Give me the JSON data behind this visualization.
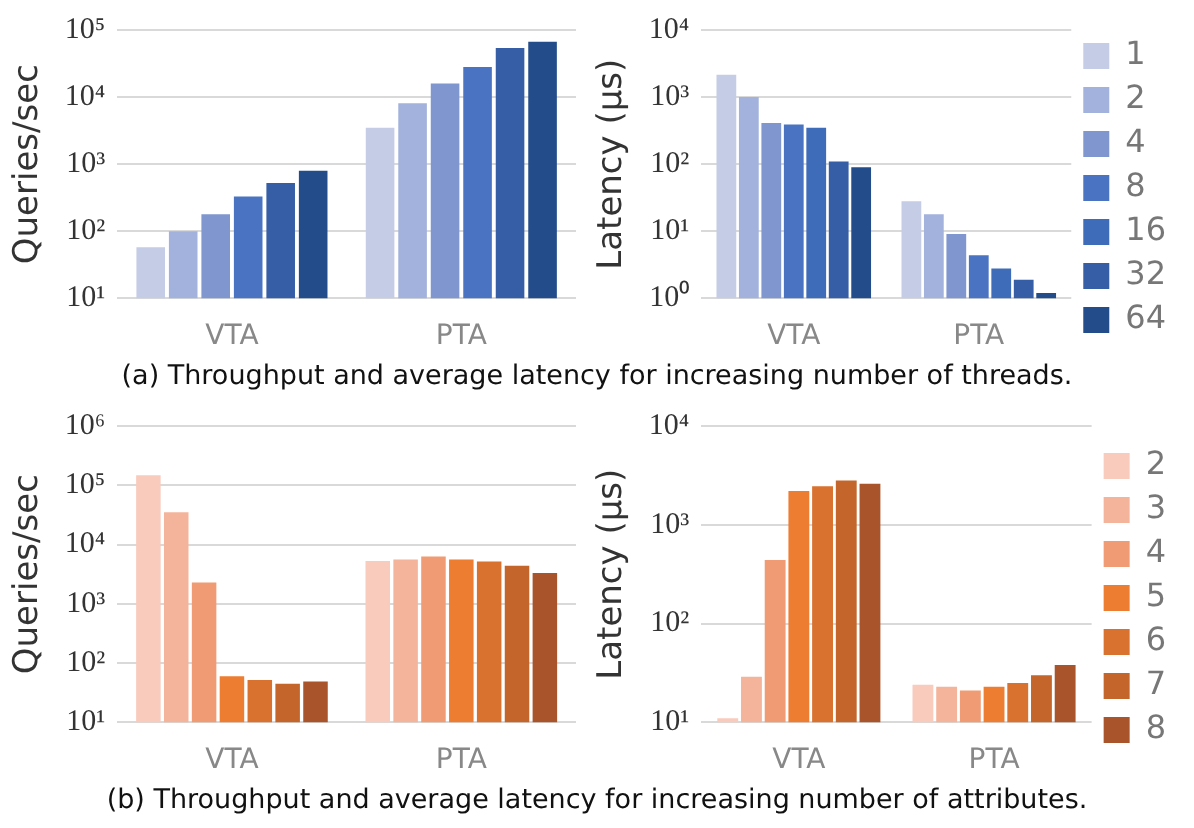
{
  "chart_data": [
    {
      "type": "bar",
      "ylabel": "Queries/sec",
      "categories": [
        "VTA",
        "PTA"
      ],
      "log": "y",
      "grid": "y",
      "legend": false,
      "ylim": [
        10,
        100000
      ],
      "yticks": [
        {
          "value": 10,
          "label": "10¹"
        },
        {
          "value": 100,
          "label": "10²"
        },
        {
          "value": 1000,
          "label": "10³"
        },
        {
          "value": 10000,
          "label": "10⁴"
        },
        {
          "value": 100000,
          "label": "10⁵"
        }
      ],
      "annotations": [
        "(a) Throughput and average latency for increasing number of threads."
      ],
      "series": [
        {
          "color": "#c5cde6",
          "values": [
            58,
            3500
          ]
        },
        {
          "color": "#a3b2dc",
          "values": [
            100,
            8100
          ]
        },
        {
          "color": "#7f96cf",
          "values": [
            180,
            16000
          ]
        },
        {
          "color": "#4a74c2",
          "values": [
            330,
            28000
          ]
        },
        {
          "color": "#365ea6",
          "values": [
            525,
            54000
          ]
        },
        {
          "color": "#234c8a",
          "values": [
            800,
            67000
          ]
        }
      ]
    },
    {
      "type": "bar",
      "ylabel": "Latency (µs)",
      "categories": [
        "VTA",
        "PTA"
      ],
      "log": "y",
      "grid": "y",
      "legend": "right",
      "ylim": [
        1,
        10000
      ],
      "yticks": [
        {
          "value": 1,
          "label": "10⁰"
        },
        {
          "value": 10,
          "label": "10¹"
        },
        {
          "value": 100,
          "label": "10²"
        },
        {
          "value": 1000,
          "label": "10³"
        },
        {
          "value": 10000,
          "label": "10⁴"
        }
      ],
      "series": [
        {
          "name": "1",
          "color": "#c5cde6",
          "values": [
            2150,
            28
          ]
        },
        {
          "name": "2",
          "color": "#a3b2dc",
          "values": [
            1000,
            18
          ]
        },
        {
          "name": "4",
          "color": "#7f96cf",
          "values": [
            410,
            9.1
          ]
        },
        {
          "name": "8",
          "color": "#4a74c2",
          "values": [
            390,
            4.4
          ]
        },
        {
          "name": "16",
          "color": "#3f6cb9",
          "values": [
            350,
            2.8
          ]
        },
        {
          "name": "32",
          "color": "#365ea6",
          "values": [
            110,
            1.9
          ]
        },
        {
          "name": "64",
          "color": "#234c8a",
          "values": [
            90,
            1.2
          ]
        }
      ]
    },
    {
      "type": "bar",
      "ylabel": "Queries/sec",
      "categories": [
        "VTA",
        "PTA"
      ],
      "log": "y",
      "grid": "y",
      "legend": false,
      "ylim": [
        10,
        1000000
      ],
      "yticks": [
        {
          "value": 10,
          "label": "10¹"
        },
        {
          "value": 100,
          "label": "10²"
        },
        {
          "value": 1000,
          "label": "10³"
        },
        {
          "value": 10000,
          "label": "10⁴"
        },
        {
          "value": 100000,
          "label": "10⁵"
        },
        {
          "value": 1000000,
          "label": "10⁶"
        }
      ],
      "annotations": [
        "(b) Throughput and average latency for increasing number of attributes."
      ],
      "series": [
        {
          "color": "#f8cbbd",
          "values": [
            147000,
            5300
          ]
        },
        {
          "color": "#f4b49b",
          "values": [
            35000,
            5600
          ]
        },
        {
          "color": "#f09b73",
          "values": [
            2300,
            6300
          ]
        },
        {
          "color": "#ed7d31",
          "values": [
            60,
            5600
          ]
        },
        {
          "color": "#d9712f",
          "values": [
            52,
            5200
          ]
        },
        {
          "color": "#c4652b",
          "values": [
            45,
            4400
          ]
        },
        {
          "color": "#a9542a",
          "values": [
            49,
            3300
          ]
        }
      ]
    },
    {
      "type": "bar",
      "ylabel": "Latency (µs)",
      "categories": [
        "VTA",
        "PTA"
      ],
      "log": "y",
      "grid": "y",
      "legend": "right",
      "ylim": [
        10,
        10000
      ],
      "yticks": [
        {
          "value": 10,
          "label": "10¹"
        },
        {
          "value": 100,
          "label": "10²"
        },
        {
          "value": 1000,
          "label": "10³"
        },
        {
          "value": 10000,
          "label": "10⁴"
        }
      ],
      "series": [
        {
          "name": "2",
          "color": "#f8cbbd",
          "values": [
            11,
            24
          ]
        },
        {
          "name": "3",
          "color": "#f4b49b",
          "values": [
            29,
            23
          ]
        },
        {
          "name": "4",
          "color": "#f09b73",
          "values": [
            440,
            21
          ]
        },
        {
          "name": "5",
          "color": "#ed7d31",
          "values": [
            2200,
            23
          ]
        },
        {
          "name": "6",
          "color": "#d9712f",
          "values": [
            2450,
            25
          ]
        },
        {
          "name": "7",
          "color": "#c4652b",
          "values": [
            2800,
            30
          ]
        },
        {
          "name": "8",
          "color": "#a9542a",
          "values": [
            2600,
            38
          ]
        }
      ]
    }
  ]
}
